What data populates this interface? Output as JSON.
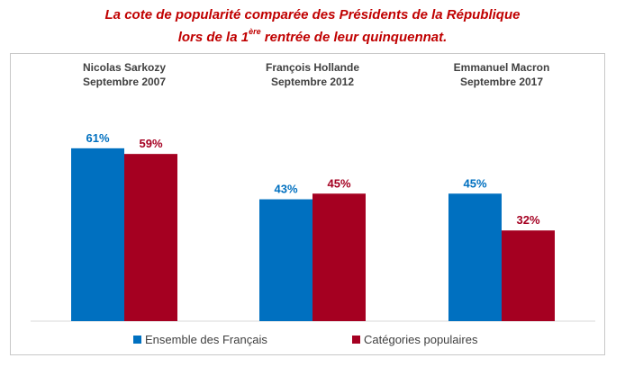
{
  "title_line1": "La cote de popularité comparée des Présidents de la République",
  "title_line2_pre": "lors de la 1",
  "title_line2_sup": "ère",
  "title_line2_post": " rentrée de leur quinquennat.",
  "chart_data": {
    "type": "bar",
    "title": "La cote de popularité comparée des Présidents de la République lors de la 1ère rentrée de leur quinquennat.",
    "categories": [
      {
        "name": "Nicolas Sarkozy",
        "date": "Septembre 2007"
      },
      {
        "name": "François Hollande",
        "date": "Septembre 2012"
      },
      {
        "name": "Emmanuel Macron",
        "date": "Septembre 2017"
      }
    ],
    "series": [
      {
        "name": "Ensemble des Français",
        "color": "#0070c0",
        "values": [
          61,
          43,
          45
        ],
        "labels": [
          "61%",
          "43%",
          "45%"
        ]
      },
      {
        "name": "Catégories populaires",
        "color": "#a50021",
        "values": [
          59,
          45,
          32
        ],
        "labels": [
          "59%",
          "45%",
          "32%"
        ]
      }
    ],
    "ylim": [
      0,
      100
    ],
    "xlabel": "",
    "ylabel": "",
    "grid": false,
    "legend": "bottom"
  }
}
